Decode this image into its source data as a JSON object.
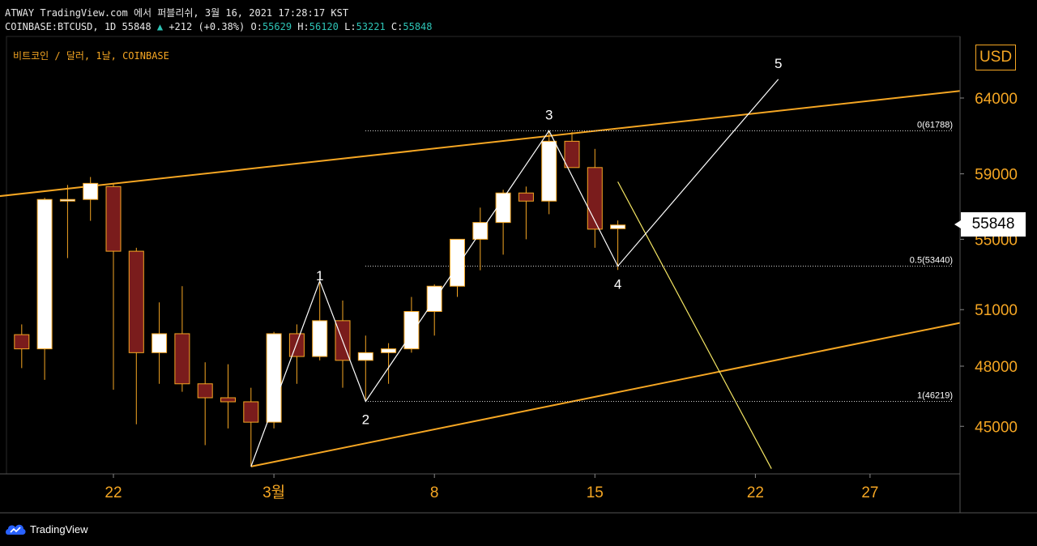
{
  "header": {
    "line1": "ATWAY TradingView.com 에서 퍼블리쉬, 3월 16, 2021 17:28:17 KST",
    "symbol": "COINBASE:BTCUSD, 1D 55848",
    "change": "+212 (+0.38%)",
    "o_label": "O:",
    "o_val": "55629",
    "h_label": "H:",
    "h_val": "56120",
    "l_label": "L:",
    "l_val": "53221",
    "c_label": "C:",
    "c_val": "55848"
  },
  "legend": "비트코인 / 달러, 1날, COINBASE",
  "currency": "USD",
  "last_price": "55848",
  "footer": {
    "brand": "TradingView"
  },
  "colors": {
    "up": "#ffffff",
    "down": "#7a1c1c",
    "wick": "#f5a623",
    "channel": "#f5a623",
    "axis_text": "#f5a623",
    "projection": "#f5e663"
  },
  "chart_data": {
    "type": "candlestick",
    "y_axis": {
      "scale": "log",
      "ylim": [
        42700,
        69000
      ],
      "ticks": [
        45000,
        48000,
        51000,
        55000,
        59000,
        64000
      ]
    },
    "x_axis": {
      "ticks": [
        {
          "label": "22",
          "day": 0
        },
        {
          "label": "3월",
          "day": 7
        },
        {
          "label": "8",
          "day": 14
        },
        {
          "label": "15",
          "day": 21
        },
        {
          "label": "22",
          "day": 28
        },
        {
          "label": "27",
          "day": 33
        }
      ]
    },
    "candles": [
      {
        "day": -4,
        "o": 49650,
        "h": 50200,
        "l": 47900,
        "c": 48900
      },
      {
        "day": -3,
        "o": 48900,
        "h": 57500,
        "l": 47300,
        "c": 57400
      },
      {
        "day": -2,
        "o": 57400,
        "h": 58300,
        "l": 53900,
        "c": 57400
      },
      {
        "day": -1,
        "o": 57400,
        "h": 58800,
        "l": 56100,
        "c": 58400
      },
      {
        "day": 0,
        "o": 58200,
        "h": 58400,
        "l": 46800,
        "c": 54300
      },
      {
        "day": 1,
        "o": 54300,
        "h": 54500,
        "l": 45100,
        "c": 48700
      },
      {
        "day": 2,
        "o": 48700,
        "h": 51400,
        "l": 47100,
        "c": 49700
      },
      {
        "day": 3,
        "o": 49700,
        "h": 52300,
        "l": 46700,
        "c": 47100
      },
      {
        "day": 4,
        "o": 47100,
        "h": 48200,
        "l": 44100,
        "c": 46400
      },
      {
        "day": 5,
        "o": 46400,
        "h": 48100,
        "l": 44900,
        "c": 46200
      },
      {
        "day": 6,
        "o": 46200,
        "h": 46900,
        "l": 43100,
        "c": 45200
      },
      {
        "day": 7,
        "o": 45200,
        "h": 49800,
        "l": 44900,
        "c": 49700
      },
      {
        "day": 8,
        "o": 49700,
        "h": 50200,
        "l": 47100,
        "c": 48500
      },
      {
        "day": 9,
        "o": 48500,
        "h": 52600,
        "l": 48300,
        "c": 50400
      },
      {
        "day": 10,
        "o": 50400,
        "h": 51500,
        "l": 46900,
        "c": 48300
      },
      {
        "day": 11,
        "o": 48300,
        "h": 49600,
        "l": 46300,
        "c": 48700
      },
      {
        "day": 12,
        "o": 48700,
        "h": 49200,
        "l": 47100,
        "c": 48900
      },
      {
        "day": 13,
        "o": 48900,
        "h": 51700,
        "l": 48700,
        "c": 50900
      },
      {
        "day": 14,
        "o": 50900,
        "h": 52400,
        "l": 49600,
        "c": 52300
      },
      {
        "day": 15,
        "o": 52300,
        "h": 55000,
        "l": 51700,
        "c": 55000
      },
      {
        "day": 16,
        "o": 55000,
        "h": 56900,
        "l": 53200,
        "c": 56000
      },
      {
        "day": 17,
        "o": 56000,
        "h": 58000,
        "l": 54100,
        "c": 57800
      },
      {
        "day": 18,
        "o": 57800,
        "h": 58200,
        "l": 55000,
        "c": 57300
      },
      {
        "day": 19,
        "o": 57300,
        "h": 61800,
        "l": 56500,
        "c": 61100
      },
      {
        "day": 20,
        "o": 61100,
        "h": 61700,
        "l": 59500,
        "c": 59400
      },
      {
        "day": 21,
        "o": 59400,
        "h": 60600,
        "l": 54500,
        "c": 55600
      },
      {
        "day": 22,
        "o": 55629,
        "h": 56120,
        "l": 53221,
        "c": 55848
      }
    ],
    "wave_labels": [
      {
        "text": "1",
        "day": 9,
        "price": 52000,
        "anchor": "above"
      },
      {
        "text": "2",
        "day": 11,
        "price": 46219,
        "anchor": "below"
      },
      {
        "text": "3",
        "day": 19,
        "price": 61788,
        "anchor": "above"
      },
      {
        "text": "4",
        "day": 22,
        "price": 53440,
        "anchor": "below"
      },
      {
        "text": "5",
        "day": 29,
        "price": 65300,
        "anchor": "above"
      }
    ],
    "wave_path": [
      {
        "day": 6,
        "price": 43100
      },
      {
        "day": 9,
        "price": 52600
      },
      {
        "day": 11,
        "price": 46219
      },
      {
        "day": 19,
        "price": 61788
      },
      {
        "day": 22,
        "price": 53440
      },
      {
        "day": 29,
        "price": 65300
      }
    ],
    "fib_levels": [
      {
        "label": "0(61788)",
        "price": 61788
      },
      {
        "label": "0.5(53440)",
        "price": 53440
      },
      {
        "label": "1(46219)",
        "price": 46219
      }
    ],
    "channel_upper": [
      {
        "day": -5,
        "price": 57600
      },
      {
        "day": 37,
        "price": 64500
      }
    ],
    "channel_lower": [
      {
        "day": 6,
        "price": 43100
      },
      {
        "day": 37,
        "price": 50300
      }
    ],
    "projection_line": [
      {
        "day": 22,
        "price": 58500
      },
      {
        "day": 28.7,
        "price": 43000
      }
    ]
  }
}
